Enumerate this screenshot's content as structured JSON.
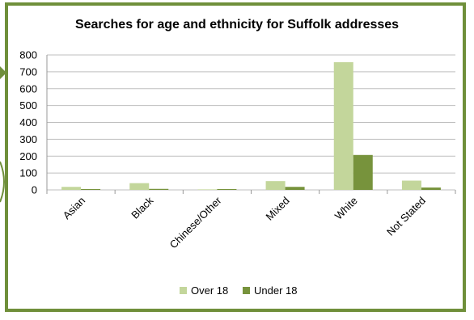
{
  "chart_data": {
    "type": "bar",
    "title": "Searches for age and ethnicity for Suffolk addresses",
    "xlabel": "",
    "ylabel": "",
    "categories": [
      "Asian",
      "Black",
      "Chinese/Other",
      "Mixed",
      "White",
      "Not Stated"
    ],
    "series": [
      {
        "name": "Over 18",
        "values": [
          18,
          40,
          3,
          52,
          757,
          55
        ],
        "color": "#c3d69b"
      },
      {
        "name": "Under 18",
        "values": [
          5,
          6,
          5,
          18,
          207,
          14
        ],
        "color": "#77933c"
      }
    ],
    "ylim": [
      0,
      800
    ],
    "yticks": [
      0,
      100,
      200,
      300,
      400,
      500,
      600,
      700,
      800
    ],
    "grid": true,
    "legend": "bottom"
  },
  "colors": {
    "border": "#6f8f3a",
    "gridline": "#bfbfbf"
  }
}
